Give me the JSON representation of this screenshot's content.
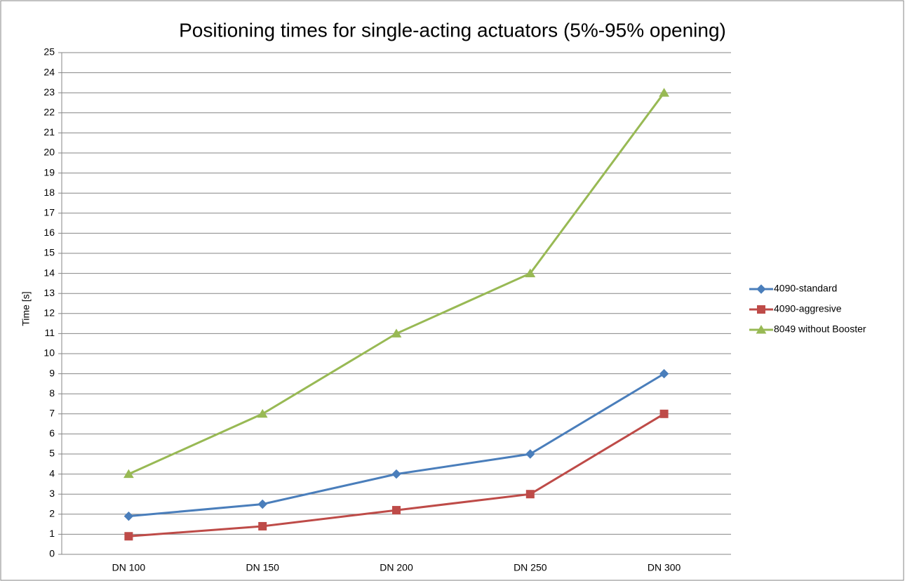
{
  "chart_data": {
    "type": "line",
    "title": "Positioning times for single-acting actuators (5%-95% opening)",
    "y_label": "Time [s]",
    "categories": [
      "DN 100",
      "DN 150",
      "DN 200",
      "DN 250",
      "DN 300"
    ],
    "series": [
      {
        "name": "4090-standard",
        "color": "#4a7ebb",
        "marker": "diamond",
        "values": [
          1.9,
          2.5,
          4,
          5,
          9
        ]
      },
      {
        "name": "4090-aggresive",
        "color": "#be4b48",
        "marker": "square",
        "values": [
          0.9,
          1.4,
          2.2,
          3,
          7
        ]
      },
      {
        "name": "8049 without Booster",
        "color": "#98b954",
        "marker": "triangle",
        "values": [
          4,
          7,
          11,
          14,
          23
        ]
      }
    ],
    "ylim": [
      0,
      25
    ],
    "yticks": [
      0,
      1,
      2,
      3,
      4,
      5,
      6,
      7,
      8,
      9,
      10,
      11,
      12,
      13,
      14,
      15,
      16,
      17,
      18,
      19,
      20,
      21,
      22,
      23,
      24,
      25
    ],
    "grid": true,
    "legend": "right"
  }
}
